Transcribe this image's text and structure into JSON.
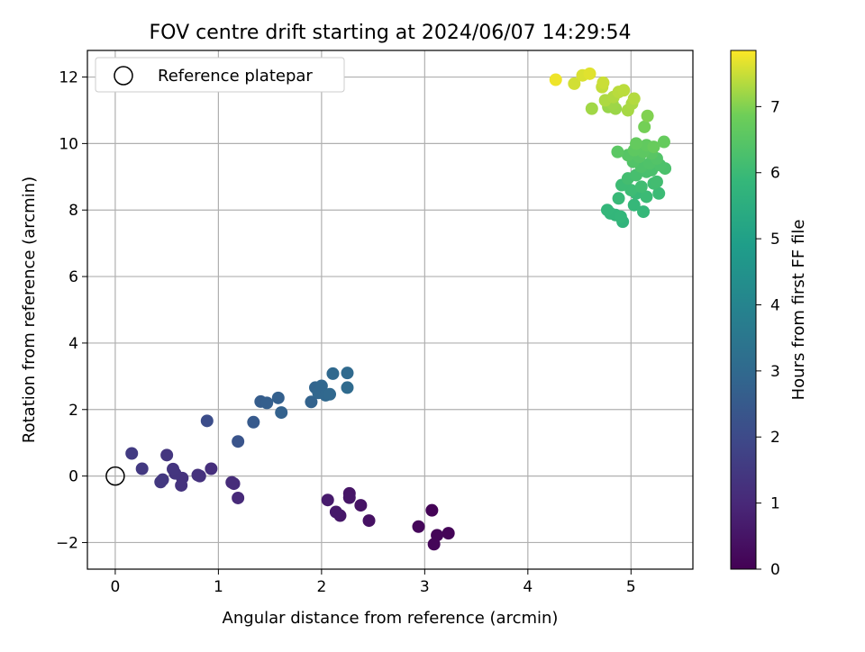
{
  "chart_data": {
    "type": "scatter",
    "title": "FOV centre drift starting at 2024/06/07 14:29:54",
    "xlabel": "Angular distance from reference (arcmin)",
    "ylabel": "Rotation from reference (arcmin)",
    "xlim": [
      -0.27,
      5.6
    ],
    "ylim": [
      -2.8,
      12.8
    ],
    "xticks": [
      0,
      1,
      2,
      3,
      4,
      5
    ],
    "yticks": [
      -2,
      0,
      2,
      4,
      6,
      8,
      10,
      12
    ],
    "xtick_labels": [
      "0",
      "1",
      "2",
      "3",
      "4",
      "5"
    ],
    "ytick_labels": [
      "−2",
      "0",
      "2",
      "4",
      "6",
      "8",
      "10",
      "12"
    ],
    "grid": true,
    "colormap": "viridis",
    "colorbar": {
      "label": "Hours from first FF file",
      "range": [
        0,
        7.85
      ],
      "ticks": [
        0,
        1,
        2,
        3,
        4,
        5,
        6,
        7
      ],
      "tick_labels": [
        "0",
        "1",
        "2",
        "3",
        "4",
        "5",
        "6",
        "7"
      ]
    },
    "legend": {
      "position": "top-left",
      "entries": [
        {
          "label": "Reference platepar",
          "marker": "open-circle"
        }
      ]
    },
    "reference_point": {
      "x": 0,
      "y": 0
    },
    "points": [
      {
        "x": 3.07,
        "y": -1.03,
        "h": 0.05
      },
      {
        "x": 3.23,
        "y": -1.72,
        "h": 0.08
      },
      {
        "x": 3.12,
        "y": -1.78,
        "h": 0.1
      },
      {
        "x": 3.09,
        "y": -2.05,
        "h": 0.12
      },
      {
        "x": 2.94,
        "y": -1.52,
        "h": 0.15
      },
      {
        "x": 2.46,
        "y": -1.34,
        "h": 0.4
      },
      {
        "x": 2.38,
        "y": -0.88,
        "h": 0.45
      },
      {
        "x": 2.27,
        "y": -0.52,
        "h": 0.5
      },
      {
        "x": 2.27,
        "y": -0.65,
        "h": 0.52
      },
      {
        "x": 2.18,
        "y": -1.19,
        "h": 0.55
      },
      {
        "x": 2.14,
        "y": -1.08,
        "h": 0.6
      },
      {
        "x": 2.06,
        "y": -0.72,
        "h": 0.65
      },
      {
        "x": 1.19,
        "y": -0.66,
        "h": 1.05
      },
      {
        "x": 1.15,
        "y": -0.23,
        "h": 1.1
      },
      {
        "x": 1.13,
        "y": -0.19,
        "h": 1.12
      },
      {
        "x": 0.93,
        "y": 0.22,
        "h": 1.2
      },
      {
        "x": 0.82,
        "y": 0.0,
        "h": 1.25
      },
      {
        "x": 0.8,
        "y": 0.03,
        "h": 1.28
      },
      {
        "x": 0.65,
        "y": -0.06,
        "h": 1.3
      },
      {
        "x": 0.64,
        "y": -0.28,
        "h": 1.32
      },
      {
        "x": 0.58,
        "y": 0.08,
        "h": 1.35
      },
      {
        "x": 0.56,
        "y": 0.21,
        "h": 1.38
      },
      {
        "x": 0.5,
        "y": 0.63,
        "h": 1.4
      },
      {
        "x": 0.46,
        "y": -0.11,
        "h": 1.42
      },
      {
        "x": 0.44,
        "y": -0.18,
        "h": 1.45
      },
      {
        "x": 0.26,
        "y": 0.22,
        "h": 1.5
      },
      {
        "x": 0.16,
        "y": 0.68,
        "h": 1.55
      },
      {
        "x": 0.89,
        "y": 1.66,
        "h": 2.1
      },
      {
        "x": 1.19,
        "y": 1.04,
        "h": 2.3
      },
      {
        "x": 1.34,
        "y": 1.62,
        "h": 2.5
      },
      {
        "x": 1.41,
        "y": 2.24,
        "h": 2.6
      },
      {
        "x": 1.47,
        "y": 2.2,
        "h": 2.65
      },
      {
        "x": 1.58,
        "y": 2.35,
        "h": 2.7
      },
      {
        "x": 1.61,
        "y": 1.91,
        "h": 2.75
      },
      {
        "x": 1.9,
        "y": 2.23,
        "h": 2.8
      },
      {
        "x": 1.94,
        "y": 2.66,
        "h": 2.85
      },
      {
        "x": 1.97,
        "y": 2.5,
        "h": 2.9
      },
      {
        "x": 2.0,
        "y": 2.71,
        "h": 2.92
      },
      {
        "x": 2.04,
        "y": 2.43,
        "h": 2.95
      },
      {
        "x": 2.08,
        "y": 2.46,
        "h": 2.97
      },
      {
        "x": 2.11,
        "y": 3.08,
        "h": 3.0
      },
      {
        "x": 2.25,
        "y": 3.1,
        "h": 3.02
      },
      {
        "x": 2.25,
        "y": 2.66,
        "h": 3.05
      },
      {
        "x": 4.92,
        "y": 7.65,
        "h": 5.75
      },
      {
        "x": 4.85,
        "y": 7.85,
        "h": 5.8
      },
      {
        "x": 4.8,
        "y": 7.9,
        "h": 5.8
      },
      {
        "x": 4.77,
        "y": 8.0,
        "h": 5.85
      },
      {
        "x": 4.9,
        "y": 7.8,
        "h": 5.85
      },
      {
        "x": 5.12,
        "y": 7.95,
        "h": 5.9
      },
      {
        "x": 5.03,
        "y": 8.15,
        "h": 5.9
      },
      {
        "x": 4.88,
        "y": 8.35,
        "h": 5.95
      },
      {
        "x": 5.05,
        "y": 8.5,
        "h": 5.95
      },
      {
        "x": 5.15,
        "y": 8.4,
        "h": 6.0
      },
      {
        "x": 5.27,
        "y": 8.5,
        "h": 6.0
      },
      {
        "x": 5.0,
        "y": 8.6,
        "h": 6.05
      },
      {
        "x": 4.91,
        "y": 8.75,
        "h": 6.05
      },
      {
        "x": 5.1,
        "y": 8.7,
        "h": 6.1
      },
      {
        "x": 5.22,
        "y": 8.8,
        "h": 6.1
      },
      {
        "x": 5.25,
        "y": 8.85,
        "h": 6.12
      },
      {
        "x": 4.97,
        "y": 8.95,
        "h": 6.15
      },
      {
        "x": 5.05,
        "y": 9.05,
        "h": 6.2
      },
      {
        "x": 5.15,
        "y": 9.15,
        "h": 6.22
      },
      {
        "x": 5.2,
        "y": 9.2,
        "h": 6.25
      },
      {
        "x": 5.33,
        "y": 9.25,
        "h": 6.28
      },
      {
        "x": 5.28,
        "y": 9.35,
        "h": 6.3
      },
      {
        "x": 5.1,
        "y": 9.3,
        "h": 6.32
      },
      {
        "x": 5.18,
        "y": 9.4,
        "h": 6.35
      },
      {
        "x": 5.02,
        "y": 9.45,
        "h": 6.38
      },
      {
        "x": 5.25,
        "y": 9.55,
        "h": 6.4
      },
      {
        "x": 5.08,
        "y": 9.6,
        "h": 6.45
      },
      {
        "x": 4.97,
        "y": 9.65,
        "h": 6.48
      },
      {
        "x": 5.2,
        "y": 9.7,
        "h": 6.5
      },
      {
        "x": 4.87,
        "y": 9.75,
        "h": 6.55
      },
      {
        "x": 5.12,
        "y": 9.75,
        "h": 6.58
      },
      {
        "x": 5.03,
        "y": 9.8,
        "h": 6.6
      },
      {
        "x": 5.15,
        "y": 9.95,
        "h": 6.65
      },
      {
        "x": 5.05,
        "y": 10.0,
        "h": 6.7
      },
      {
        "x": 5.32,
        "y": 10.05,
        "h": 6.72
      },
      {
        "x": 5.22,
        "y": 9.9,
        "h": 6.75
      },
      {
        "x": 5.13,
        "y": 10.5,
        "h": 6.9
      },
      {
        "x": 5.16,
        "y": 10.83,
        "h": 7.0
      },
      {
        "x": 4.78,
        "y": 11.1,
        "h": 7.15
      },
      {
        "x": 4.85,
        "y": 11.05,
        "h": 7.18
      },
      {
        "x": 4.82,
        "y": 11.2,
        "h": 7.2
      },
      {
        "x": 4.62,
        "y": 11.05,
        "h": 7.22
      },
      {
        "x": 4.97,
        "y": 11.0,
        "h": 7.25
      },
      {
        "x": 5.01,
        "y": 11.2,
        "h": 7.28
      },
      {
        "x": 4.75,
        "y": 11.3,
        "h": 7.3
      },
      {
        "x": 4.83,
        "y": 11.4,
        "h": 7.32
      },
      {
        "x": 5.03,
        "y": 11.35,
        "h": 7.35
      },
      {
        "x": 4.88,
        "y": 11.55,
        "h": 7.38
      },
      {
        "x": 4.93,
        "y": 11.6,
        "h": 7.4
      },
      {
        "x": 4.72,
        "y": 11.7,
        "h": 7.45
      },
      {
        "x": 4.73,
        "y": 11.83,
        "h": 7.5
      },
      {
        "x": 4.45,
        "y": 11.8,
        "h": 7.55
      },
      {
        "x": 4.53,
        "y": 12.05,
        "h": 7.6
      },
      {
        "x": 4.6,
        "y": 12.1,
        "h": 7.65
      },
      {
        "x": 4.27,
        "y": 11.92,
        "h": 7.75
      }
    ]
  }
}
